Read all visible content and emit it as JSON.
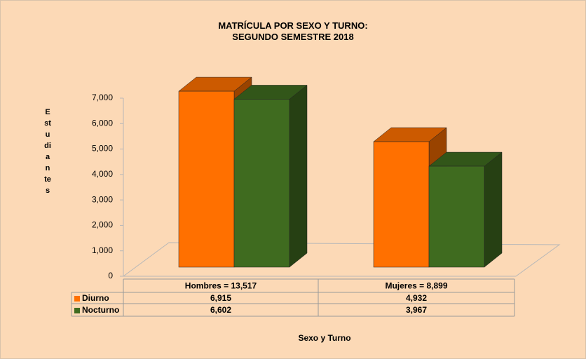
{
  "chart_data": {
    "type": "bar3d",
    "title": "MATRÍCULA POR SEXO Y TURNO:\nSEGUNDO SEMESTRE 2018",
    "y_label": "Estudiantes",
    "x_label": "Sexo y Turno",
    "categories": [
      "Hombres = 13,517",
      "Mujeres = 8,899"
    ],
    "series": [
      {
        "name": "Diurno",
        "color": "#ff7000",
        "values": [
          6915,
          4932
        ],
        "value_labels": [
          "6,915",
          "4,932"
        ]
      },
      {
        "name": "Nocturno",
        "color": "#3f6b1f",
        "values": [
          6602,
          3967
        ],
        "value_labels": [
          "6,602",
          "3,967"
        ]
      }
    ],
    "ylim": [
      0,
      7000
    ],
    "yticks": [
      0,
      {
        "value": 1000,
        "label": "1,000"
      },
      {
        "value": 2000,
        "label": "2,000"
      },
      {
        "value": 3000,
        "label": "3,000"
      },
      {
        "value": 4000,
        "label": "4,000"
      },
      {
        "value": 5000,
        "label": "5,000"
      },
      {
        "value": 6000,
        "label": "6,000"
      },
      {
        "value": 7000,
        "label": "7,000"
      }
    ],
    "grid": false
  }
}
